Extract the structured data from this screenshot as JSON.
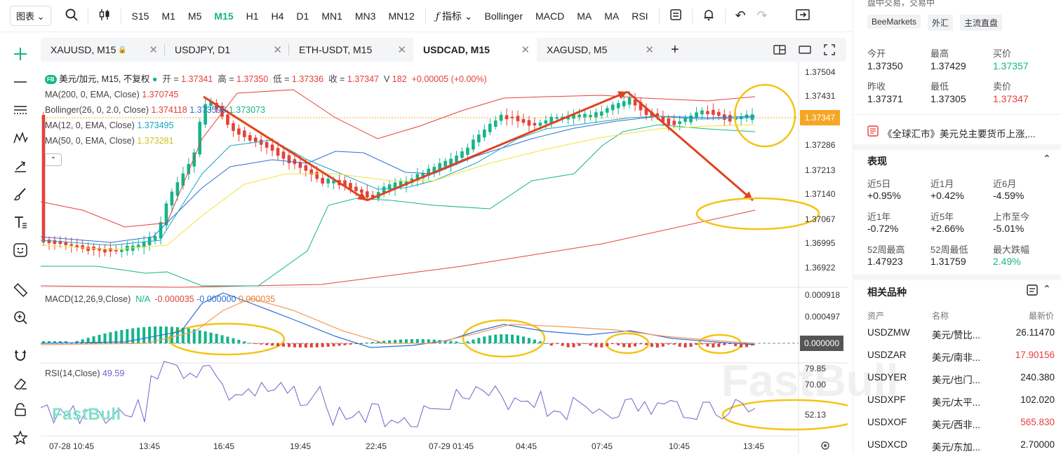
{
  "toolbar": {
    "chart_type": "图表",
    "timeframes": [
      "S15",
      "M1",
      "M5",
      "M15",
      "H1",
      "H4",
      "D1",
      "MN1",
      "MN3",
      "MN12"
    ],
    "active_timeframe": "M15",
    "indicators_label": "指标",
    "indicator_buttons": [
      "Bollinger",
      "MACD",
      "MA",
      "MA",
      "RSI"
    ]
  },
  "tabs": [
    {
      "label": "XAUUSD, M15",
      "locked": true
    },
    {
      "label": "USDJPY, D1"
    },
    {
      "label": "ETH-USDT, M15"
    },
    {
      "label": "USDCAD, M15",
      "active": true
    },
    {
      "label": "XAGUSD, M5"
    }
  ],
  "legend": {
    "badge": "FB",
    "symbol": "美元/加元, M15, 不复权",
    "open_label": "开 =",
    "open": "1.37341",
    "high_label": "高 =",
    "high": "1.37350",
    "low_label": "低 =",
    "low": "1.37336",
    "close_label": "收 =",
    "close": "1.37347",
    "volume_label": "V",
    "volume": "182",
    "change": "+0.00005 (+0.00%)",
    "ma200_label": "MA(200, 0, EMA, Close)",
    "ma200": "1.370745",
    "boll_label": "Bollinger(26, 0, 2.0, Close)",
    "boll_upper": "1.374118",
    "boll_mid": "1.373596",
    "boll_lower": "1.373073",
    "ma12_label": "MA(12, 0, EMA, Close)",
    "ma12": "1.373495",
    "ma50_label": "MA(50, 0, EMA, Close)",
    "ma50": "1.373281",
    "macd_label": "MACD(12,26,9,Close)",
    "macd_na": "N/A",
    "macd_v1": "-0.000035",
    "macd_v2": "-0.000000",
    "macd_v3": "0.000035",
    "rsi_label": "RSI(14,Close)",
    "rsi_val": "49.59"
  },
  "price_axis": [
    "1.37504",
    "1.37431",
    "1.37358",
    "1.37286",
    "1.37213",
    "1.37140",
    "1.37067",
    "1.36995",
    "1.36922"
  ],
  "current_price": "1.37347",
  "macd_axis": [
    "0.000918",
    "0.000497",
    "0.000000"
  ],
  "rsi_axis": [
    "79.85",
    "70.00",
    "52.13"
  ],
  "time_axis": [
    "07-28 10:45",
    "13:45",
    "16:45",
    "19:45",
    "22:45",
    "07-29 01:45",
    "04:45",
    "07:45",
    "10:45",
    "13:45"
  ],
  "watermark": "FastBull",
  "right_panel": {
    "top_text": "盘中交易，交易中",
    "tags": [
      "BeeMarkets",
      "外汇",
      "主流直盘"
    ],
    "quote": [
      {
        "label": "今开",
        "value": "1.37350"
      },
      {
        "label": "最高",
        "value": "1.37429"
      },
      {
        "label": "买价",
        "value": "1.37357"
      },
      {
        "label": "昨收",
        "value": "1.37371"
      },
      {
        "label": "最低",
        "value": "1.37305"
      },
      {
        "label": "卖价",
        "value": "1.37347"
      }
    ],
    "news": "《全球汇市》美元兑主要货币上涨,...",
    "perf_title": "表现",
    "perf": [
      {
        "label": "近5日",
        "value": "+0.95%"
      },
      {
        "label": "近1月",
        "value": "+0.42%"
      },
      {
        "label": "近6月",
        "value": "-4.59%"
      },
      {
        "label": "近1年",
        "value": "-0.72%"
      },
      {
        "label": "近5年",
        "value": "+2.66%"
      },
      {
        "label": "上市至今",
        "value": "-5.01%"
      },
      {
        "label": "52周最高",
        "value": "1.47923"
      },
      {
        "label": "52周最低",
        "value": "1.31759"
      },
      {
        "label": "最大跌幅",
        "value": "2.49%"
      }
    ],
    "related_title": "相关品种",
    "cols": [
      "资产",
      "名称",
      "最新价"
    ],
    "related": [
      {
        "asset": "USDZMW",
        "name": "美元/赞比...",
        "price": "26.11470",
        "color": "#222222"
      },
      {
        "asset": "USDZAR",
        "name": "美元/南非...",
        "price": "17.90156",
        "color": "#e5403b"
      },
      {
        "asset": "USDYER",
        "name": "美元/也门...",
        "price": "240.380",
        "color": "#222222"
      },
      {
        "asset": "USDXPF",
        "name": "美元/太平...",
        "price": "102.020",
        "color": "#222222"
      },
      {
        "asset": "USDXOF",
        "name": "美元/西非...",
        "price": "565.830",
        "color": "#e5403b"
      },
      {
        "asset": "USDXCD",
        "name": "美元/东加...",
        "price": "2.70000",
        "color": "#222222"
      }
    ]
  },
  "colors": {
    "up": "#13b58a",
    "down": "#e5403b",
    "accent": "#13b58a",
    "price_tag": "#f5a623"
  }
}
